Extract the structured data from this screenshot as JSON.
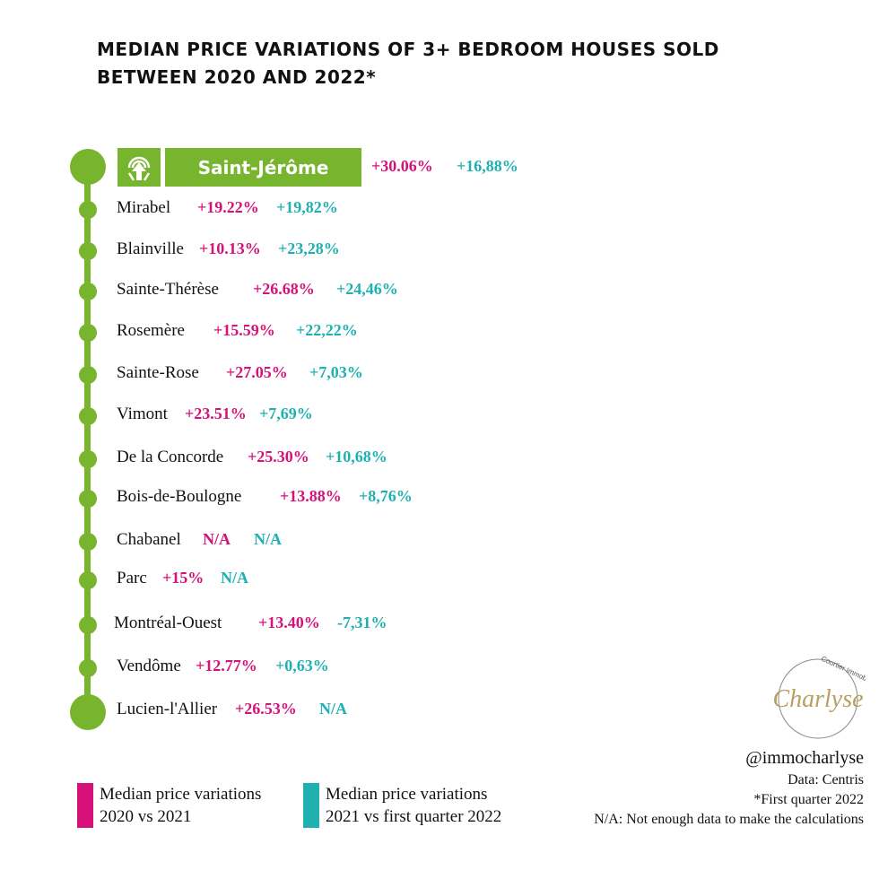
{
  "title": "MEDIAN PRICE VARIATIONS OF 3+ BEDROOM HOUSES SOLD BETWEEN 2020 AND 2022*",
  "colors": {
    "line": "#78b52f",
    "series_2020_2021": "#d6127a",
    "series_2021_2022": "#1fb0b0"
  },
  "highlight": {
    "name": "Saint-Jérôme",
    "icon": "train-icon",
    "v1": "+30.06%",
    "v2": "+16,88%"
  },
  "rows": [
    {
      "name": "Mirabel",
      "v1": "+19.22%",
      "v2": "+19,82%"
    },
    {
      "name": "Blainville",
      "v1": "+10.13%",
      "v2": "+23,28%"
    },
    {
      "name": "Sainte-Thérèse",
      "v1": "+26.68%",
      "v2": "+24,46%"
    },
    {
      "name": "Rosemère",
      "v1": "+15.59%",
      "v2": "+22,22%"
    },
    {
      "name": "Sainte-Rose",
      "v1": "+27.05%",
      "v2": "+7,03%"
    },
    {
      "name": "Vimont",
      "v1": "+23.51%",
      "v2": "+7,69%"
    },
    {
      "name": "De la Concorde",
      "v1": "+25.30%",
      "v2": "+10,68%"
    },
    {
      "name": "Bois-de-Boulogne",
      "v1": "+13.88%",
      "v2": "+8,76%"
    },
    {
      "name": "Chabanel",
      "v1": "N/A",
      "v2": "N/A"
    },
    {
      "name": "Parc",
      "v1": "+15%",
      "v2": "N/A"
    },
    {
      "name": "Montréal-Ouest",
      "v1": "+13.40%",
      "v2": "-7,31%"
    },
    {
      "name": "Vendôme",
      "v1": "+12.77%",
      "v2": "+0,63%"
    },
    {
      "name": "Lucien-l'Allier",
      "v1": "+26.53%",
      "v2": "N/A"
    }
  ],
  "legend": [
    {
      "line1": "Median price variations",
      "line2": "2020 vs 2021"
    },
    {
      "line1": "Median price variations",
      "line2": "2021 vs first quarter 2022"
    }
  ],
  "logo": {
    "name": "Charlyse",
    "tagline": "Courtier Immobilier"
  },
  "handle": "@immocharlyse",
  "source": "Data: Centris",
  "footnote": "*First quarter 2022",
  "na_note": "N/A: Not enough data to make the calculations"
}
